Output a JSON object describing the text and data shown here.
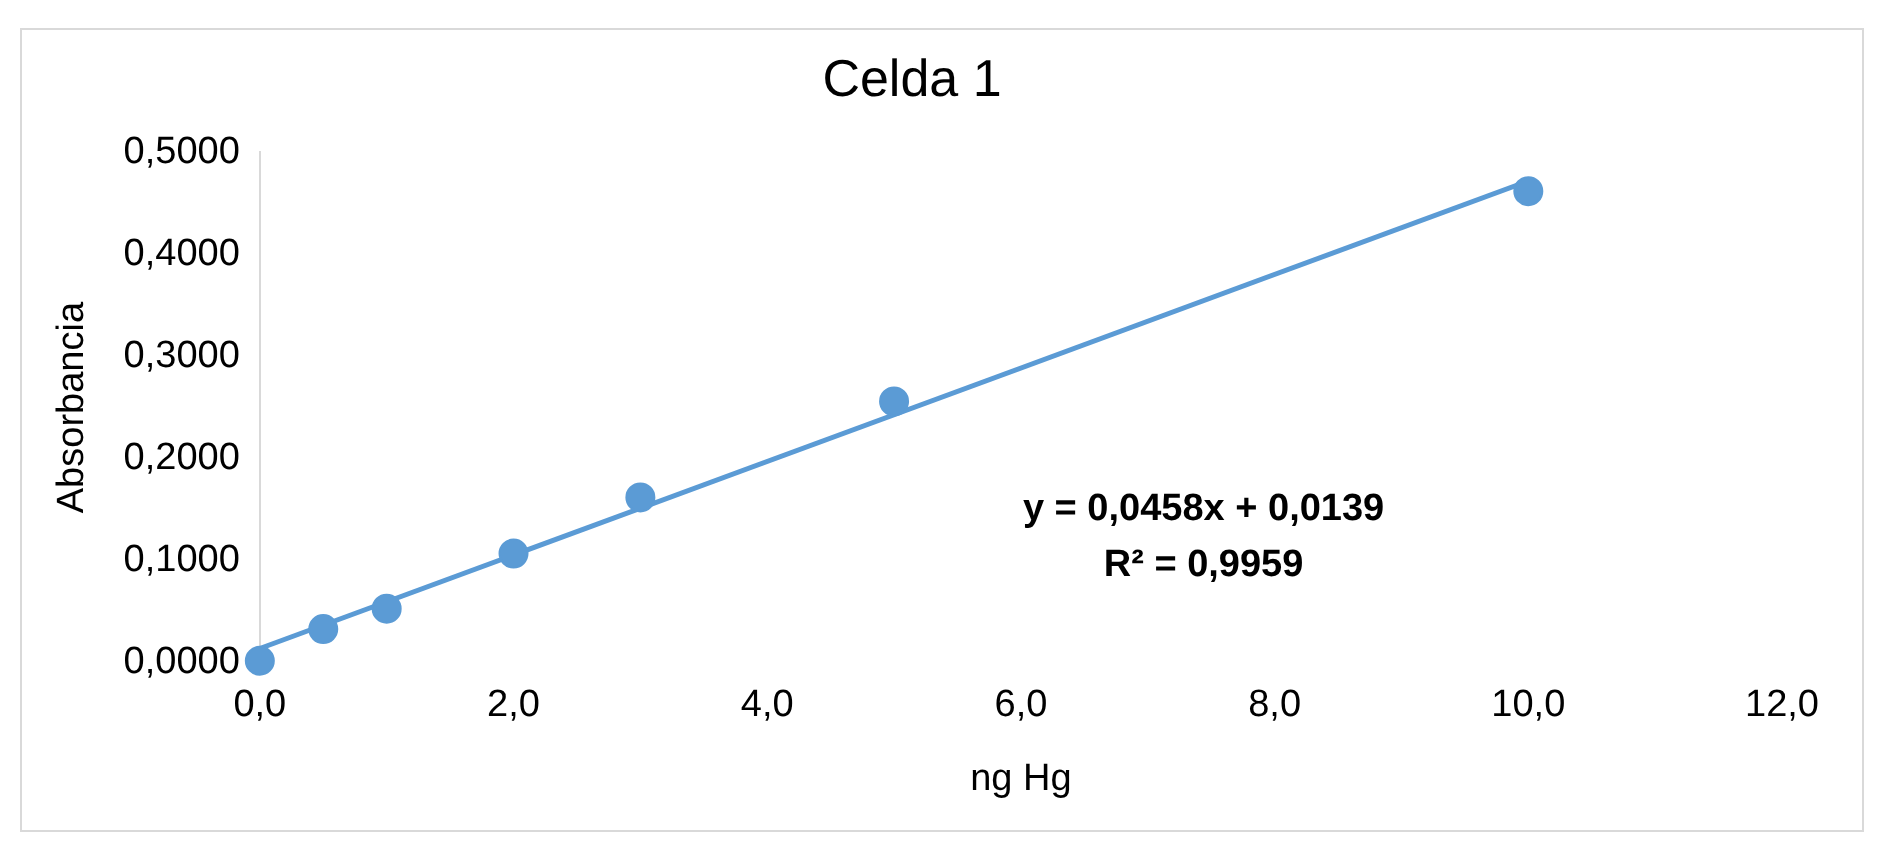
{
  "chart_data": {
    "type": "scatter",
    "title": "Celda 1",
    "xlabel": "ng Hg",
    "ylabel": "Absorbancia",
    "x": [
      0,
      0.5,
      1,
      2,
      3,
      5,
      10
    ],
    "series": [
      {
        "type": "scatter",
        "color": "#5b9bd5",
        "values": [
          0.002,
          0.033,
          0.053,
          0.107,
          0.162,
          0.256,
          0.462
        ],
        "marker": "circle"
      },
      {
        "type": "line",
        "color": "#5b9bd5",
        "x": [
          0,
          10
        ],
        "values": [
          0.014,
          0.472
        ],
        "marker": "none",
        "line_style": "solid"
      }
    ],
    "xlim": [
      0,
      12
    ],
    "ylim": [
      0,
      0.5
    ],
    "xticks": [
      {
        "value": 0,
        "label": "0,0"
      },
      {
        "value": 2,
        "label": "2,0"
      },
      {
        "value": 4,
        "label": "4,0"
      },
      {
        "value": 6,
        "label": "6,0"
      },
      {
        "value": 8,
        "label": "8,0"
      },
      {
        "value": 10,
        "label": "10,0"
      },
      {
        "value": 12,
        "label": "12,0"
      }
    ],
    "yticks": [
      {
        "value": 0,
        "label": "0,0000"
      },
      {
        "value": 0.1,
        "label": "0,1000"
      },
      {
        "value": 0.2,
        "label": "0,2000"
      },
      {
        "value": 0.3,
        "label": "0,3000"
      },
      {
        "value": 0.4,
        "label": "0,4000"
      },
      {
        "value": 0.5,
        "label": "0,5000"
      }
    ],
    "grid": false,
    "legend": false,
    "annotations": [
      "y = 0,0458x + 0,0139",
      "R² = 0,9959"
    ]
  }
}
